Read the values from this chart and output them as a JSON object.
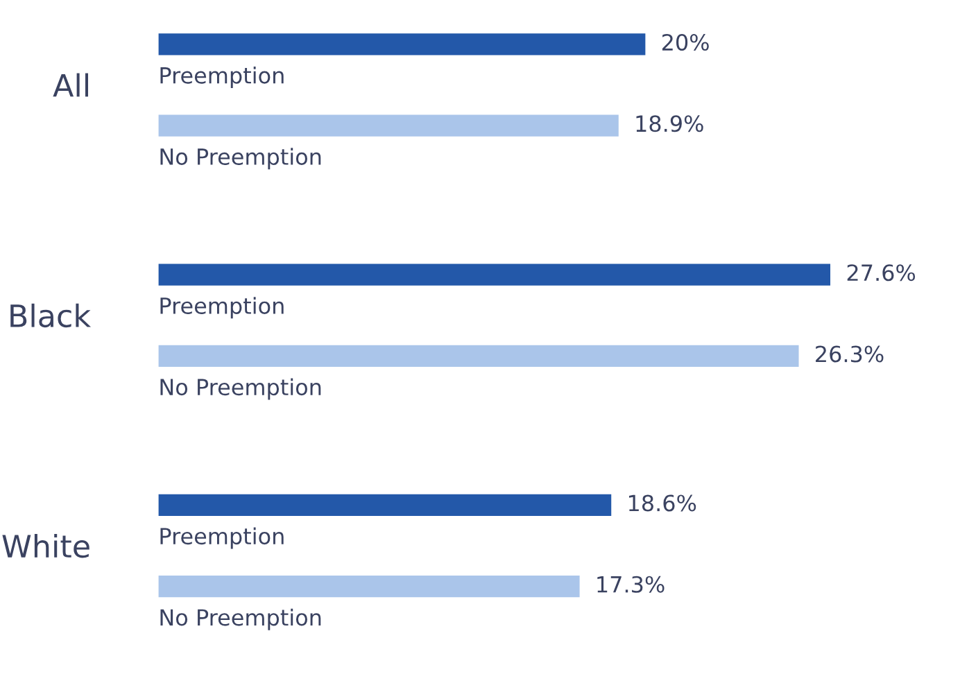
{
  "chart_data": {
    "type": "bar",
    "orientation": "horizontal",
    "categories": [
      "All",
      "Black",
      "White"
    ],
    "series": [
      {
        "name": "Preemption",
        "color": "#2358a9",
        "values": [
          20,
          27.6,
          18.6
        ],
        "value_labels": [
          "20%",
          "27.6%",
          "18.6%"
        ]
      },
      {
        "name": "No Preemption",
        "color": "#aac5ea",
        "values": [
          18.9,
          26.3,
          17.3
        ],
        "value_labels": [
          "18.9%",
          "26.3%",
          "17.3%"
        ]
      }
    ],
    "legend": false
  }
}
